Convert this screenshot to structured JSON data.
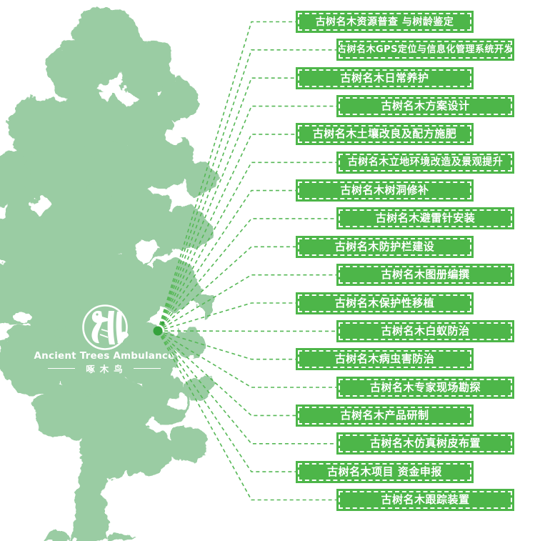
{
  "logo": {
    "title_en": "Ancient Trees Ambulance",
    "title_cn": "啄木鸟"
  },
  "colors": {
    "tree_silhouette": "#9ACCA3",
    "banner_green": "#4DB649",
    "connector_green": "#56B856",
    "hub_dot_green": "#35A23C",
    "label_text": "#FFFFFF"
  },
  "services": {
    "items": [
      {
        "label": "古树名木资源普查 与树龄鉴定"
      },
      {
        "label": "古树名木GPS定位与信息化管理系统开发"
      },
      {
        "label": "古树名木日常养护"
      },
      {
        "label": "古树名木方案设计"
      },
      {
        "label": "古树名木土壤改良及配方施肥"
      },
      {
        "label": "古树名木立地环境改造及景观提升"
      },
      {
        "label": "古树名木树洞修补"
      },
      {
        "label": "古树名木避雷针安装"
      },
      {
        "label": "古树名木防护栏建设"
      },
      {
        "label": "古树名木图册编撰"
      },
      {
        "label": "古树名木保护性移植"
      },
      {
        "label": "古树名木白蚁防治"
      },
      {
        "label": "古树名木病虫害防治"
      },
      {
        "label": "古树名木专家现场勘探"
      },
      {
        "label": "古树名木产品研制"
      },
      {
        "label": "古树名木仿真树皮布置"
      },
      {
        "label": "古树名木项目 资金申报"
      },
      {
        "label": "古树名木跟踪装置"
      }
    ]
  }
}
